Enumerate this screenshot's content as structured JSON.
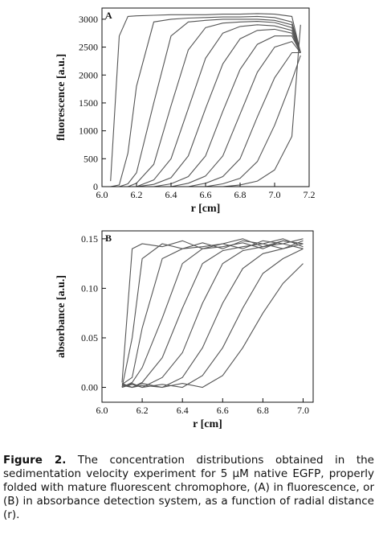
{
  "chart_data": [
    {
      "type": "line",
      "panel_label": "A",
      "x_label": "r [cm]",
      "y_label": "fluorescence [a.u.]",
      "color": "#555555",
      "x": [
        6.05,
        6.1,
        6.15,
        6.2,
        6.3,
        6.4,
        6.5,
        6.6,
        6.7,
        6.8,
        6.9,
        7.0,
        7.1,
        7.15
      ],
      "series": [
        {
          "values": [
            100,
            2700,
            3050,
            3060,
            3070,
            3080,
            3080,
            3080,
            3090,
            3090,
            3100,
            3090,
            3050,
            2400
          ]
        },
        {
          "values": [
            0,
            30,
            600,
            1800,
            2950,
            3000,
            3020,
            3030,
            3040,
            3040,
            3050,
            3030,
            2950,
            2400
          ]
        },
        {
          "values": [
            0,
            0,
            50,
            250,
            1500,
            2700,
            2950,
            2980,
            3000,
            3000,
            3000,
            2980,
            2900,
            2400
          ]
        },
        {
          "values": [
            0,
            0,
            0,
            60,
            400,
            1450,
            2450,
            2850,
            2930,
            2950,
            2960,
            2940,
            2850,
            2400
          ]
        },
        {
          "values": [
            0,
            0,
            0,
            0,
            120,
            500,
            1400,
            2300,
            2750,
            2870,
            2900,
            2880,
            2800,
            2400
          ]
        },
        {
          "values": [
            0,
            0,
            0,
            0,
            40,
            160,
            550,
            1400,
            2200,
            2650,
            2800,
            2820,
            2750,
            2400
          ]
        },
        {
          "values": [
            0,
            0,
            0,
            0,
            0,
            50,
            180,
            550,
            1350,
            2100,
            2550,
            2700,
            2700,
            2400
          ]
        },
        {
          "values": [
            0,
            0,
            0,
            0,
            0,
            0,
            60,
            190,
            550,
            1300,
            2050,
            2500,
            2600,
            2400
          ]
        },
        {
          "values": [
            0,
            0,
            0,
            0,
            0,
            0,
            0,
            60,
            180,
            500,
            1250,
            1950,
            2400,
            2400
          ]
        },
        {
          "values": [
            0,
            0,
            0,
            0,
            0,
            0,
            0,
            0,
            50,
            150,
            450,
            1100,
            1900,
            2350
          ]
        },
        {
          "values": [
            0,
            0,
            0,
            0,
            0,
            0,
            0,
            0,
            0,
            30,
            100,
            300,
            900,
            2900
          ]
        }
      ],
      "xlim": [
        6.0,
        7.2
      ],
      "xticks": [
        {
          "value": 6,
          "label": "6.0"
        },
        6.2,
        6.4,
        6.6,
        6.8,
        {
          "value": 7,
          "label": "7.0"
        },
        7.2
      ],
      "ylim": [
        0,
        3200
      ],
      "yticks": [
        0,
        500,
        1000,
        1500,
        2000,
        2500,
        3000
      ]
    },
    {
      "type": "line",
      "panel_label": "B",
      "x_label": "r [cm]",
      "y_label": "absorbance [a.u.]",
      "color": "#555555",
      "x": [
        6.1,
        6.15,
        6.2,
        6.3,
        6.4,
        6.5,
        6.6,
        6.7,
        6.8,
        6.9,
        7.0
      ],
      "series": [
        {
          "values": [
            0.005,
            0.14,
            0.145,
            0.142,
            0.148,
            0.14,
            0.145,
            0.15,
            0.142,
            0.148,
            0.145
          ]
        },
        {
          "values": [
            0,
            0.05,
            0.13,
            0.145,
            0.14,
            0.146,
            0.14,
            0.148,
            0.145,
            0.15,
            0.142
          ]
        },
        {
          "values": [
            0.003,
            0.01,
            0.06,
            0.13,
            0.14,
            0.142,
            0.145,
            0.14,
            0.148,
            0.145,
            0.15
          ]
        },
        {
          "values": [
            0,
            0.005,
            0.02,
            0.07,
            0.125,
            0.14,
            0.142,
            0.146,
            0.14,
            0.148,
            0.145
          ]
        },
        {
          "values": [
            0.004,
            0,
            0.005,
            0.03,
            0.08,
            0.125,
            0.138,
            0.142,
            0.145,
            0.14,
            0.148
          ]
        },
        {
          "values": [
            0,
            0.003,
            0,
            0.01,
            0.035,
            0.085,
            0.125,
            0.138,
            0.142,
            0.145,
            0.14
          ]
        },
        {
          "values": [
            0.002,
            0,
            0.004,
            0,
            0.01,
            0.04,
            0.085,
            0.12,
            0.135,
            0.14,
            0.145
          ]
        },
        {
          "values": [
            0,
            0.004,
            0,
            0.003,
            0,
            0.012,
            0.04,
            0.08,
            0.115,
            0.13,
            0.14
          ]
        },
        {
          "values": [
            0.003,
            0,
            0.002,
            0,
            0.004,
            0,
            0.012,
            0.04,
            0.075,
            0.105,
            0.125
          ]
        }
      ],
      "xlim": [
        6.0,
        7.05
      ],
      "xticks": [
        {
          "value": 6,
          "label": "6.0"
        },
        6.2,
        6.4,
        6.6,
        6.8,
        {
          "value": 7,
          "label": "7.0"
        }
      ],
      "ylim": [
        -0.015,
        0.158
      ],
      "yticks": [
        {
          "value": 0,
          "label": "0.00"
        },
        0.05,
        {
          "value": 0.1,
          "label": "0.10"
        },
        0.15
      ]
    }
  ],
  "caption": {
    "label": "Figure 2.",
    "text": "The concentration distributions obtained in the sedimentation velocity experiment for 5 µM native EGFP, properly folded with mature fluorescent chromophore, (A) in fluorescence, or (B) in absorbance detection system, as a function of radial distance (r)."
  }
}
